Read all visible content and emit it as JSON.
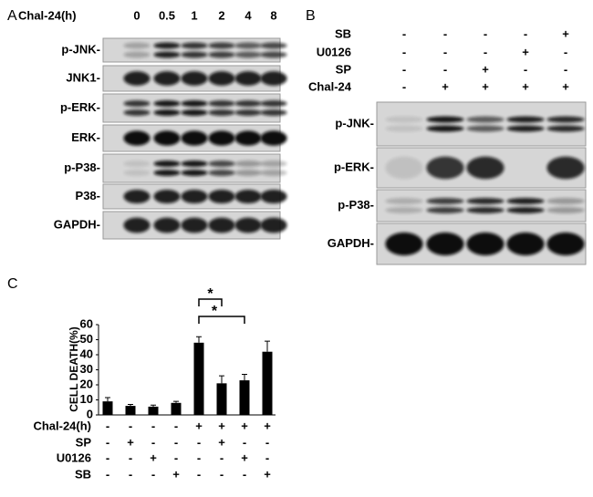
{
  "panel_a": {
    "label": "A",
    "header_label": "Chal-24(h)",
    "timepoints": [
      "0",
      "0.5",
      "1",
      "2",
      "4",
      "8"
    ],
    "rows": [
      "p-JNK-",
      "JNK1-",
      "p-ERK-",
      "ERK-",
      "p-P38-",
      "P38-",
      "GAPDH-"
    ]
  },
  "panel_b": {
    "label": "B",
    "conditions": [
      {
        "name": "SB",
        "signs": [
          "-",
          "-",
          "-",
          "-",
          "+"
        ]
      },
      {
        "name": "U0126",
        "signs": [
          "-",
          "-",
          "-",
          "+",
          "-"
        ]
      },
      {
        "name": "SP",
        "signs": [
          "-",
          "-",
          "+",
          "-",
          "-"
        ]
      },
      {
        "name": "Chal-24",
        "signs": [
          "-",
          "+",
          "+",
          "+",
          "+"
        ]
      }
    ],
    "rows": [
      "p-JNK-",
      "p-ERK-",
      "p-P38-",
      "GAPDH-"
    ]
  },
  "chart_data": {
    "type": "bar",
    "panel_label": "C",
    "ylabel": "CELL DEATH(%)",
    "categories": [
      null,
      null,
      null,
      null,
      null,
      null,
      null,
      null
    ],
    "series": [
      {
        "color": "#000000",
        "values": [
          9,
          6,
          5.5,
          8,
          48,
          21,
          23,
          42
        ],
        "error": [
          2.5,
          1,
          1,
          1,
          4,
          5,
          4,
          7
        ]
      }
    ],
    "ylim": [
      0,
      60
    ],
    "yticks": [
      0,
      10,
      20,
      30,
      40,
      50,
      60
    ],
    "annotations": [
      "*",
      "*"
    ],
    "conditions": [
      {
        "name": "Chal-24(h)",
        "signs": [
          "-",
          "-",
          "-",
          "-",
          "+",
          "+",
          "+",
          "+"
        ]
      },
      {
        "name": "SP",
        "signs": [
          "-",
          "+",
          "-",
          "-",
          "-",
          "+",
          "-",
          "-"
        ]
      },
      {
        "name": "U0126",
        "signs": [
          "-",
          "-",
          "+",
          "-",
          "-",
          "-",
          "+",
          "-"
        ]
      },
      {
        "name": "SB",
        "signs": [
          "-",
          "-",
          "-",
          "+",
          "-",
          "-",
          "-",
          "+"
        ]
      }
    ]
  }
}
